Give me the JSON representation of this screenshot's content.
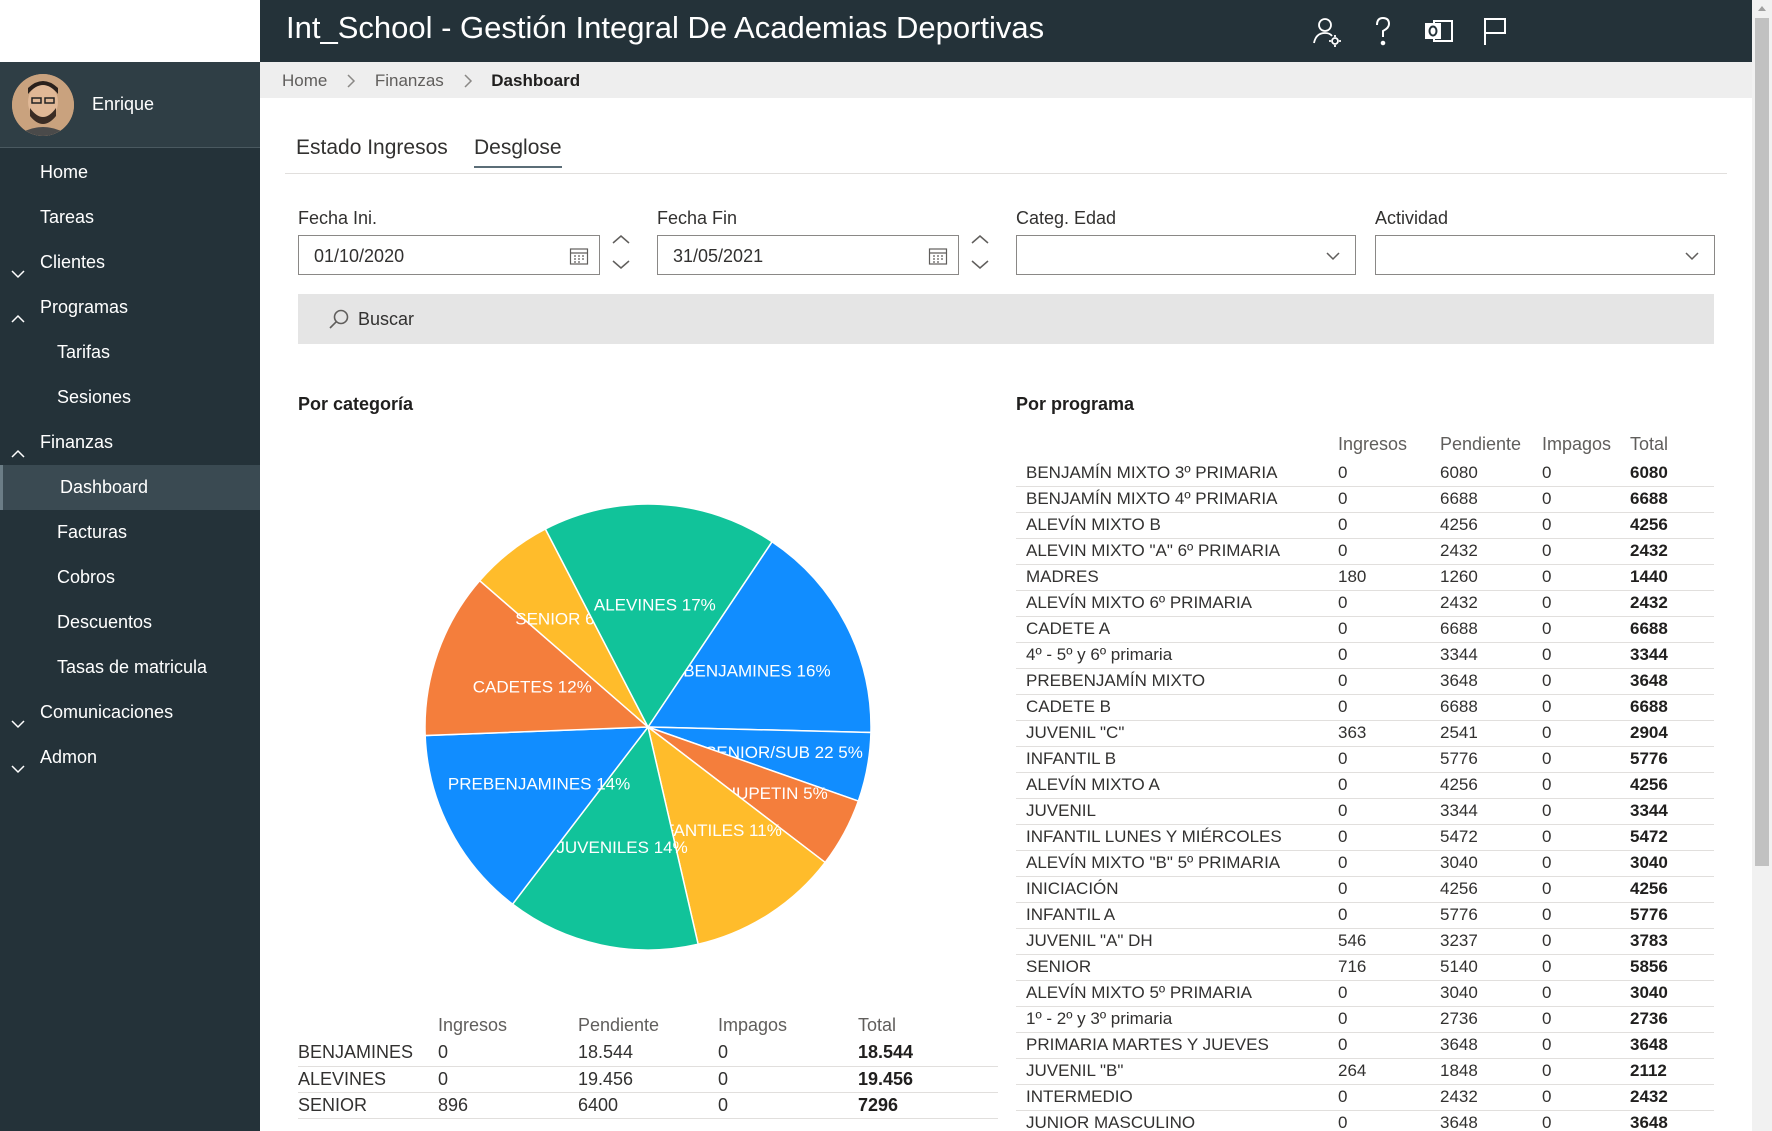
{
  "header": {
    "title": "Int_School - Gestión Integral De Academias Deportivas"
  },
  "user": {
    "name": "Enrique"
  },
  "sidebar": {
    "items": [
      {
        "label": "Home",
        "level": "top",
        "chevron": "none"
      },
      {
        "label": "Tareas",
        "level": "top",
        "chevron": "none"
      },
      {
        "label": "Clientes",
        "level": "top",
        "chevron": "down"
      },
      {
        "label": "Programas",
        "level": "top",
        "chevron": "up"
      },
      {
        "label": "Tarifas",
        "level": "sub",
        "chevron": "none"
      },
      {
        "label": "Sesiones",
        "level": "sub",
        "chevron": "none"
      },
      {
        "label": "Finanzas",
        "level": "top",
        "chevron": "up"
      },
      {
        "label": "Dashboard",
        "level": "sub",
        "chevron": "none",
        "active": true
      },
      {
        "label": "Facturas",
        "level": "sub",
        "chevron": "none"
      },
      {
        "label": "Cobros",
        "level": "sub",
        "chevron": "none"
      },
      {
        "label": "Descuentos",
        "level": "sub",
        "chevron": "none"
      },
      {
        "label": "Tasas de matricula",
        "level": "sub",
        "chevron": "none"
      },
      {
        "label": "Comunicaciones",
        "level": "top",
        "chevron": "down"
      },
      {
        "label": "Admon",
        "level": "top",
        "chevron": "down"
      }
    ]
  },
  "breadcrumb": {
    "home": "Home",
    "section": "Finanzas",
    "current": "Dashboard"
  },
  "tabs": [
    {
      "label": "Estado Ingresos"
    },
    {
      "label": "Desglose"
    }
  ],
  "filters": {
    "fecha_ini_label": "Fecha Ini.",
    "fecha_ini_value": "01/10/2020",
    "fecha_fin_label": "Fecha Fin",
    "fecha_fin_value": "31/05/2021",
    "categ_label": "Categ. Edad",
    "categ_value": "",
    "actividad_label": "Actividad",
    "actividad_value": ""
  },
  "search": {
    "label": "Buscar"
  },
  "sections": {
    "categoria_title": "Por categoría",
    "programa_title": "Por programa"
  },
  "chart_data": {
    "type": "pie",
    "labels": [
      "BENJAMINES 16%",
      "SENIOR/SUB 22 5%",
      "CHUPETIN 5%",
      "INFANTILES 11%",
      "JUVENILES 14%",
      "PREBENJAMINES 14%",
      "CADETES 12%",
      "SENIOR 6%",
      "ALEVINES 17%"
    ],
    "categories": [
      "BENJAMINES",
      "SENIOR/SUB 22",
      "CHUPETIN",
      "INFANTILES",
      "JUVENILES",
      "PREBENJAMINES",
      "CADETES",
      "SENIOR",
      "ALEVINES"
    ],
    "values": [
      16,
      5,
      5,
      11,
      14,
      14,
      12,
      6,
      17
    ],
    "colors": [
      "#118DFF",
      "#118DFF",
      "#F47E3C",
      "#FFBC2B",
      "#11C39A",
      "#118DFF",
      "#F47E3C",
      "#FFBC2B",
      "#11C39A"
    ]
  },
  "cat_table": {
    "headers": [
      "",
      "Ingresos",
      "Pendiente",
      "Impagos",
      "Total"
    ],
    "rows": [
      [
        "BENJAMINES",
        "0",
        "18.544",
        "0",
        "18.544"
      ],
      [
        "ALEVINES",
        "0",
        "19.456",
        "0",
        "19.456"
      ],
      [
        "SENIOR",
        "896",
        "6400",
        "0",
        "7296"
      ]
    ]
  },
  "prog_table": {
    "headers": [
      "",
      "Ingresos",
      "Pendiente",
      "Impagos",
      "Total"
    ],
    "rows": [
      [
        "BENJAMÍN MIXTO 3º PRIMARIA",
        "0",
        "6080",
        "0",
        "6080"
      ],
      [
        "BENJAMÍN MIXTO 4º PRIMARIA",
        "0",
        "6688",
        "0",
        "6688"
      ],
      [
        "ALEVÍN MIXTO B",
        "0",
        "4256",
        "0",
        "4256"
      ],
      [
        "ALEVIN MIXTO \"A\" 6º PRIMARIA",
        "0",
        "2432",
        "0",
        "2432"
      ],
      [
        "MADRES",
        "180",
        "1260",
        "0",
        "1440"
      ],
      [
        "ALEVÍN MIXTO 6º PRIMARIA",
        "0",
        "2432",
        "0",
        "2432"
      ],
      [
        "CADETE A",
        "0",
        "6688",
        "0",
        "6688"
      ],
      [
        "4º - 5º y 6º primaria",
        "0",
        "3344",
        "0",
        "3344"
      ],
      [
        "PREBENJAMÍN MIXTO",
        "0",
        "3648",
        "0",
        "3648"
      ],
      [
        "CADETE B",
        "0",
        "6688",
        "0",
        "6688"
      ],
      [
        "JUVENIL \"C\"",
        "363",
        "2541",
        "0",
        "2904"
      ],
      [
        "INFANTIL B",
        "0",
        "5776",
        "0",
        "5776"
      ],
      [
        "ALEVÍN MIXTO A",
        "0",
        "4256",
        "0",
        "4256"
      ],
      [
        "JUVENIL",
        "0",
        "3344",
        "0",
        "3344"
      ],
      [
        "INFANTIL LUNES Y MIÉRCOLES",
        "0",
        "5472",
        "0",
        "5472"
      ],
      [
        "ALEVÍN MIXTO \"B\" 5º PRIMARIA",
        "0",
        "3040",
        "0",
        "3040"
      ],
      [
        "INICIACIÓN",
        "0",
        "4256",
        "0",
        "4256"
      ],
      [
        "INFANTIL A",
        "0",
        "5776",
        "0",
        "5776"
      ],
      [
        "JUVENIL \"A\" DH",
        "546",
        "3237",
        "0",
        "3783"
      ],
      [
        "SENIOR",
        "716",
        "5140",
        "0",
        "5856"
      ],
      [
        "ALEVÍN MIXTO 5º PRIMARIA",
        "0",
        "3040",
        "0",
        "3040"
      ],
      [
        "1º - 2º y 3º primaria",
        "0",
        "2736",
        "0",
        "2736"
      ],
      [
        "PRIMARIA MARTES Y JUEVES",
        "0",
        "3648",
        "0",
        "3648"
      ],
      [
        "JUVENIL \"B\"",
        "264",
        "1848",
        "0",
        "2112"
      ],
      [
        "INTERMEDIO",
        "0",
        "2432",
        "0",
        "2432"
      ],
      [
        "JUNIOR MASCULINO",
        "0",
        "3648",
        "0",
        "3648"
      ]
    ]
  }
}
